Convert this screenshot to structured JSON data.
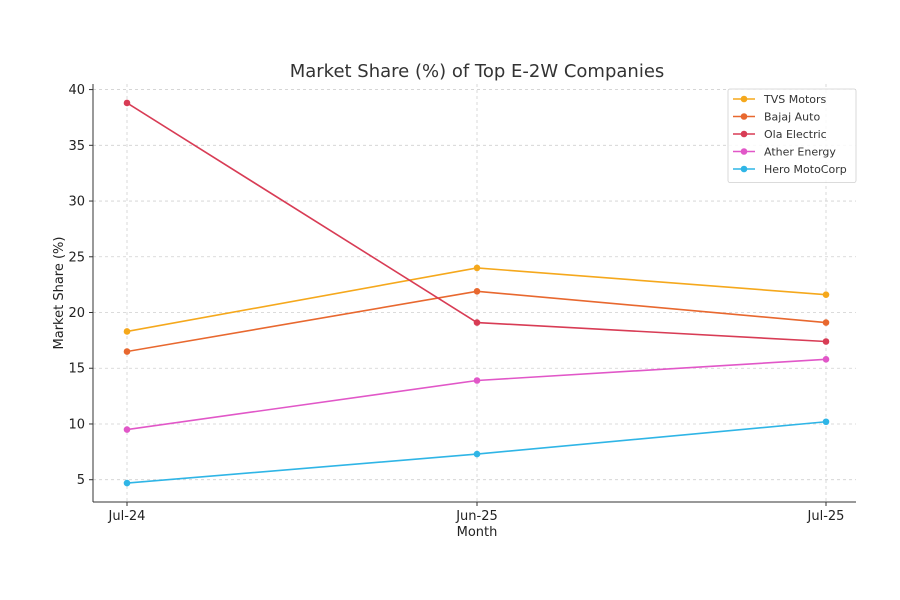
{
  "chart_data": {
    "type": "line",
    "title": "Market Share (%) of Top E-2W Companies",
    "xlabel": "Month",
    "ylabel": "Market Share (%)",
    "categories": [
      "Jul-24",
      "Jun-25",
      "Jul-25"
    ],
    "ylim": [
      3,
      40.5
    ],
    "yticks": [
      5,
      10,
      15,
      20,
      25,
      30,
      35,
      40
    ],
    "grid": true,
    "legend_position": "top-right",
    "series": [
      {
        "name": "TVS Motors",
        "color": "#F5A81C",
        "values": [
          18.3,
          24.0,
          21.6
        ]
      },
      {
        "name": "Bajaj Auto",
        "color": "#E8682F",
        "values": [
          16.5,
          21.9,
          19.1
        ]
      },
      {
        "name": "Ola Electric",
        "color": "#D83C55",
        "values": [
          38.8,
          19.1,
          17.4
        ]
      },
      {
        "name": "Ather Energy",
        "color": "#E157C8",
        "values": [
          9.5,
          13.9,
          15.8
        ]
      },
      {
        "name": "Hero MotoCorp",
        "color": "#2FB5E6",
        "values": [
          4.7,
          7.3,
          10.2
        ]
      }
    ]
  }
}
